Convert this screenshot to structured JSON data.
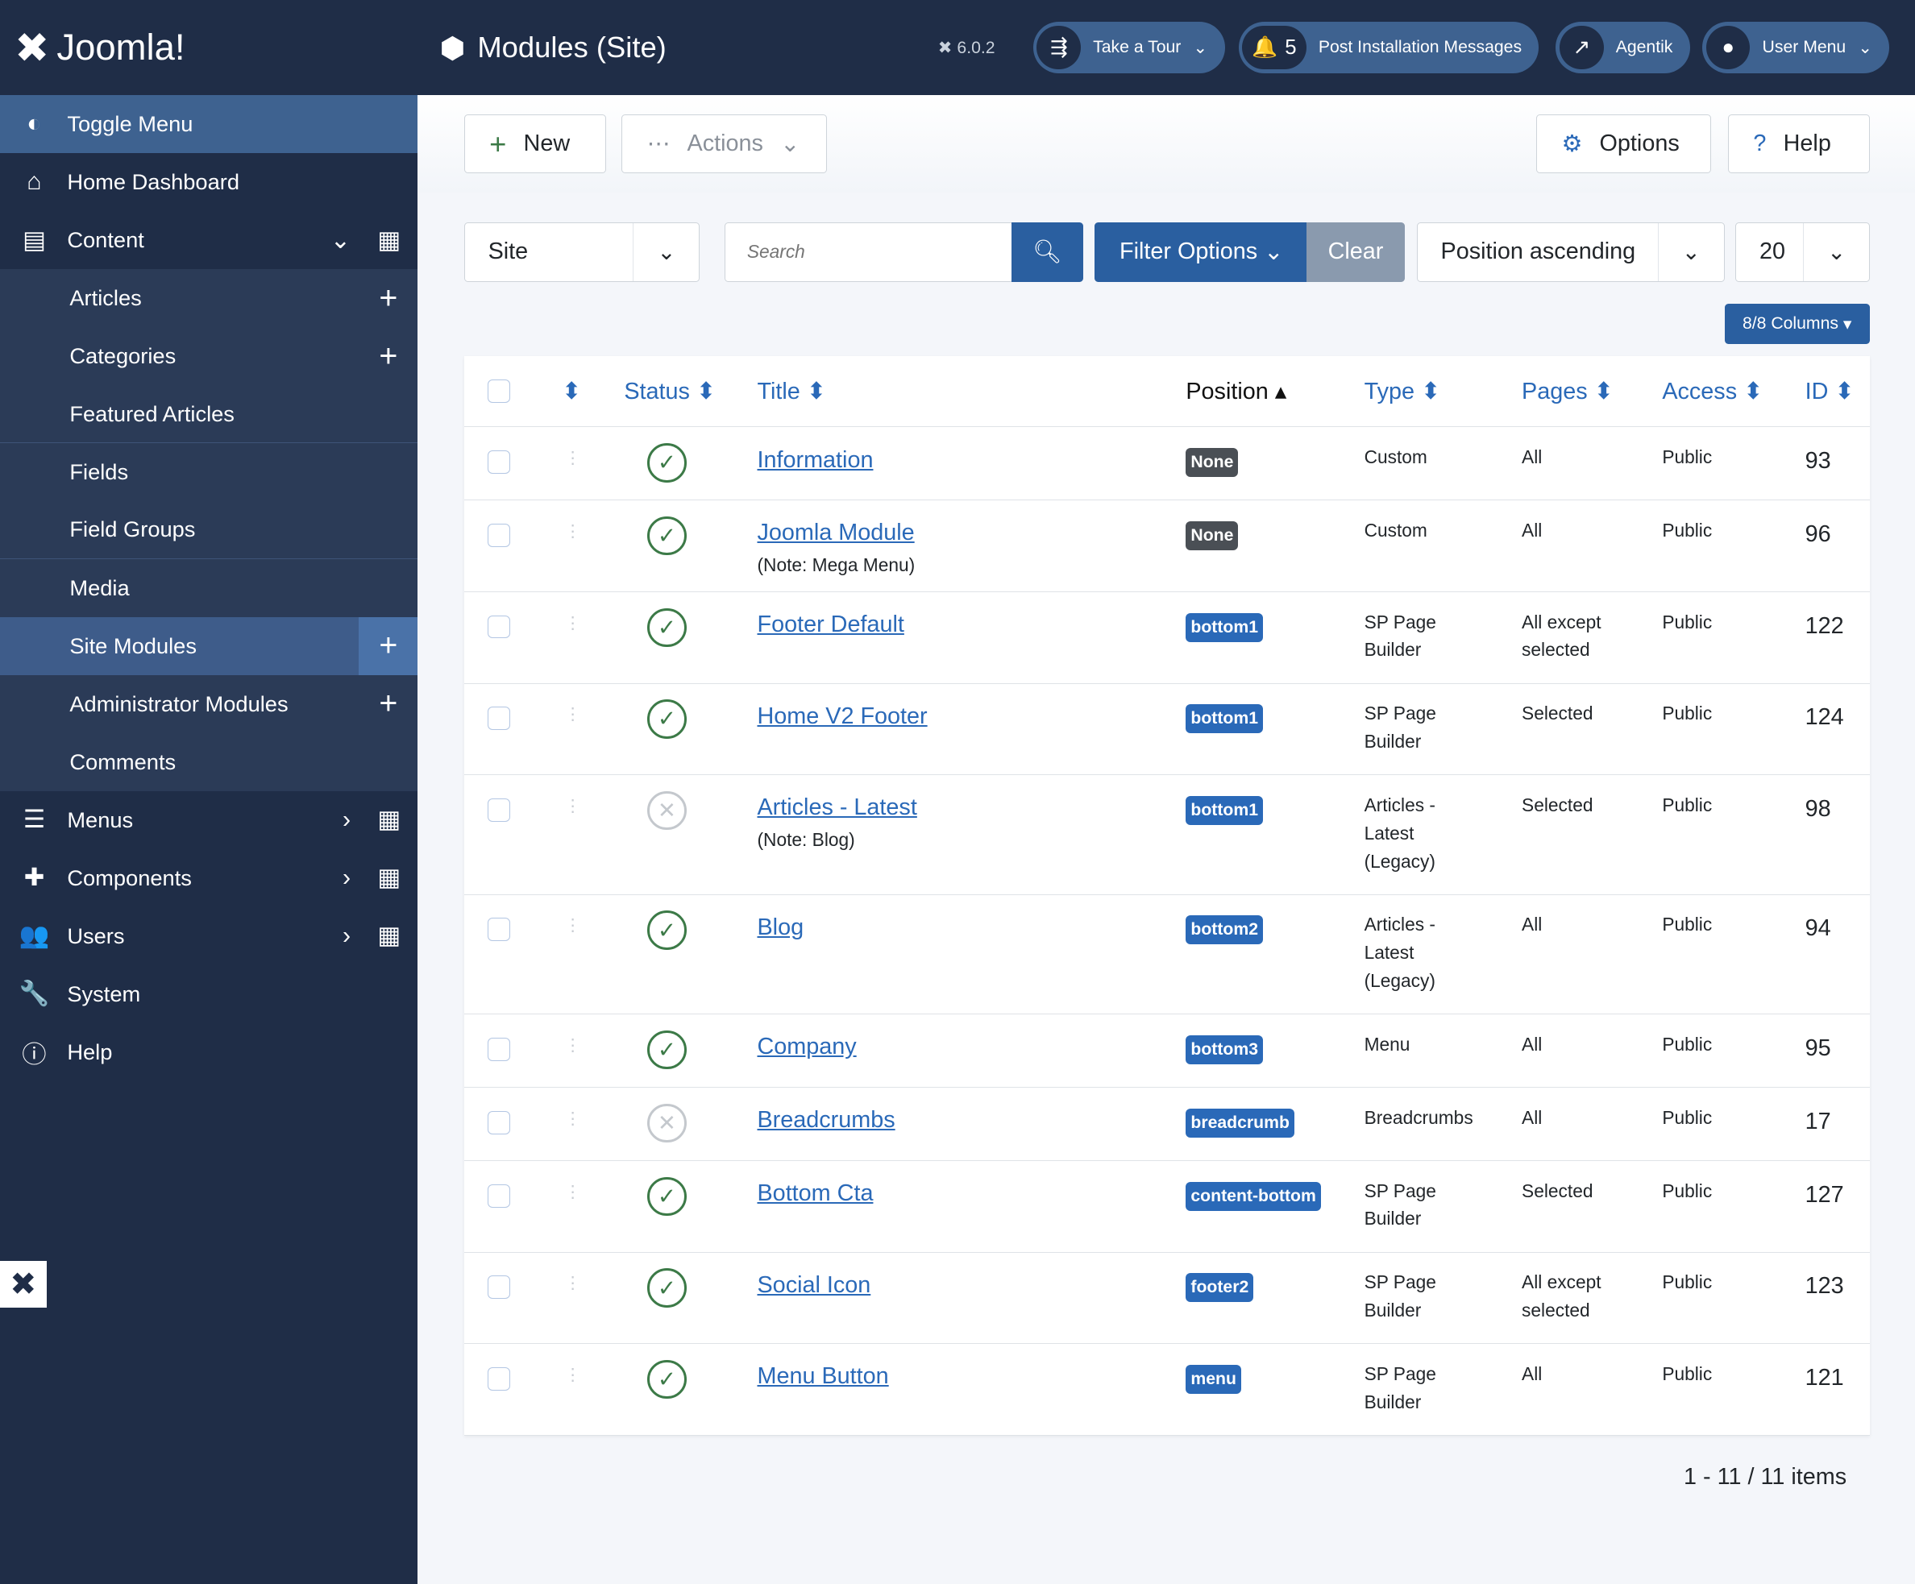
{
  "brand": {
    "name": "Joomla!",
    "version": "6.0.2"
  },
  "header": {
    "title": "Modules (Site)",
    "tour": "Take a Tour",
    "notif_count": "5",
    "notif_label": "Post Installation Messages",
    "agentik": "Agentik",
    "user_menu": "User Menu"
  },
  "sidebar": {
    "toggle": "Toggle Menu",
    "home": "Home Dashboard",
    "content": "Content",
    "articles": "Articles",
    "categories": "Categories",
    "featured": "Featured Articles",
    "fields": "Fields",
    "field_groups": "Field Groups",
    "media": "Media",
    "site_modules": "Site Modules",
    "admin_modules": "Administrator Modules",
    "comments": "Comments",
    "menus": "Menus",
    "components": "Components",
    "users": "Users",
    "system": "System",
    "help": "Help"
  },
  "toolbar": {
    "new": "New",
    "actions": "Actions",
    "options": "Options",
    "help": "Help"
  },
  "filters": {
    "client": "Site",
    "search_placeholder": "Search",
    "filter_options": "Filter Options",
    "clear": "Clear",
    "ordering": "Position ascending",
    "limit": "20",
    "columns": "8/8 Columns"
  },
  "table": {
    "headers": {
      "status": "Status",
      "title": "Title",
      "position": "Position",
      "type": "Type",
      "pages": "Pages",
      "access": "Access",
      "id": "ID"
    },
    "rows": [
      {
        "published": true,
        "title": "Information",
        "note": "",
        "position": "None",
        "type": "Custom",
        "pages": "All",
        "access": "Public",
        "id": "93"
      },
      {
        "published": true,
        "title": "Joomla Module",
        "note": "(Note: Mega Menu)",
        "position": "None",
        "type": "Custom",
        "pages": "All",
        "access": "Public",
        "id": "96"
      },
      {
        "published": true,
        "title": "Footer Default",
        "note": "",
        "position": "bottom1",
        "type": "SP Page\nBuilder",
        "pages": "All except\nselected",
        "access": "Public",
        "id": "122"
      },
      {
        "published": true,
        "title": "Home V2 Footer",
        "note": "",
        "position": "bottom1",
        "type": "SP Page\nBuilder",
        "pages": "Selected",
        "access": "Public",
        "id": "124"
      },
      {
        "published": false,
        "title": "Articles - Latest",
        "note": "(Note: Blog)",
        "position": "bottom1",
        "type": "Articles -\nLatest\n(Legacy)",
        "pages": "Selected",
        "access": "Public",
        "id": "98"
      },
      {
        "published": true,
        "title": "Blog",
        "note": "",
        "position": "bottom2",
        "type": "Articles -\nLatest\n(Legacy)",
        "pages": "All",
        "access": "Public",
        "id": "94"
      },
      {
        "published": true,
        "title": "Company",
        "note": "",
        "position": "bottom3",
        "type": "Menu",
        "pages": "All",
        "access": "Public",
        "id": "95"
      },
      {
        "published": false,
        "title": "Breadcrumbs",
        "note": "",
        "position": "breadcrumb",
        "type": "Breadcrumbs",
        "pages": "All",
        "access": "Public",
        "id": "17"
      },
      {
        "published": true,
        "title": "Bottom Cta",
        "note": "",
        "position": "content-bottom",
        "type": "SP Page\nBuilder",
        "pages": "Selected",
        "access": "Public",
        "id": "127"
      },
      {
        "published": true,
        "title": "Social Icon",
        "note": "",
        "position": "footer2",
        "type": "SP Page\nBuilder",
        "pages": "All except\nselected",
        "access": "Public",
        "id": "123"
      },
      {
        "published": true,
        "title": "Menu Button",
        "note": "",
        "position": "menu",
        "type": "SP Page\nBuilder",
        "pages": "All",
        "access": "Public",
        "id": "121"
      }
    ]
  },
  "pagination": "1 - 11 / 11 items"
}
